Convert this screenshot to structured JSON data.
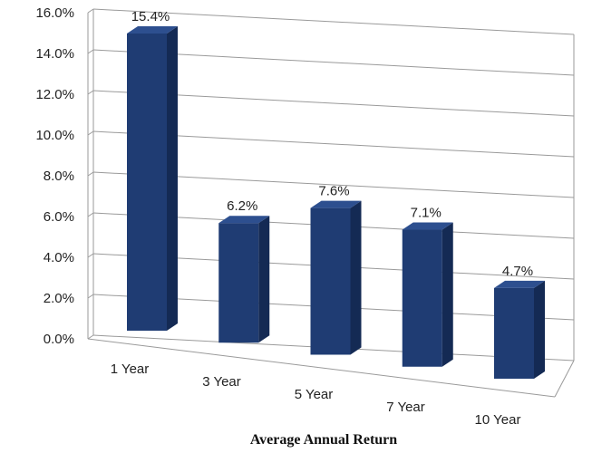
{
  "chart_data": {
    "type": "bar",
    "categories": [
      "1 Year",
      "3 Year",
      "5 Year",
      "7 Year",
      "10 Year"
    ],
    "values": [
      15.4,
      6.2,
      7.6,
      7.1,
      4.7
    ],
    "data_labels": [
      "15.4%",
      "6.2%",
      "7.6%",
      "7.1%",
      "4.7%"
    ],
    "title": "",
    "xlabel": "Average Annual Return",
    "ylabel": "",
    "ylim": [
      0,
      16
    ],
    "yticks": [
      "0.0%",
      "2.0%",
      "4.0%",
      "6.0%",
      "8.0%",
      "10.0%",
      "12.0%",
      "14.0%",
      "16.0%"
    ],
    "grid": true,
    "legend": "none",
    "style": "3d-perspective",
    "colors": {
      "bar_front": "#1f3c73",
      "bar_side": "#142a54",
      "bar_top": "#2d4f8f",
      "grid": "#9a9a9a"
    }
  }
}
